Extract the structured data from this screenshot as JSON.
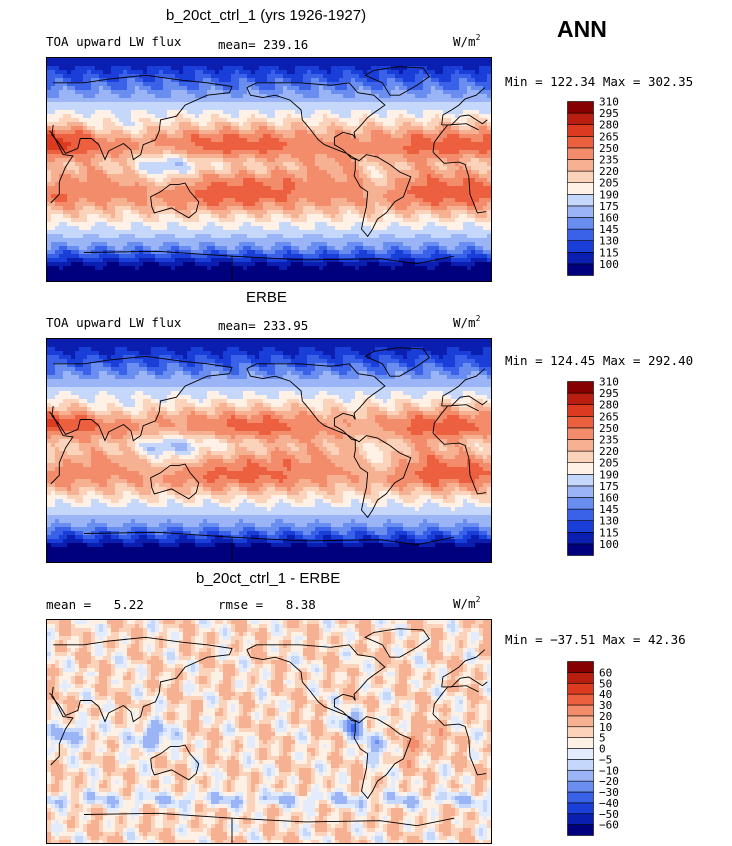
{
  "season": "ANN",
  "colors": {
    "blue_red_15": [
      "#00007f",
      "#0a1fb0",
      "#1a3fd9",
      "#3a62e8",
      "#6a8ef0",
      "#9bb4f5",
      "#c5d7fb",
      "#fff1e6",
      "#fbd2ba",
      "#f6b092",
      "#f38c6b",
      "#ec6040",
      "#dc3b1f",
      "#b81f10",
      "#860000"
    ],
    "diff_16": [
      "#00007f",
      "#0a1fb0",
      "#1a3fd9",
      "#3a62e8",
      "#6a8ef0",
      "#9bb4f5",
      "#c5d7fb",
      "#e3ecfd",
      "#fdf0e4",
      "#fbd2ba",
      "#f6b092",
      "#f38c6b",
      "#ec6040",
      "#dc3b1f",
      "#b81f10",
      "#860000"
    ]
  },
  "panels": [
    {
      "title": "b_20ct_ctrl_1 (yrs 1926-1927)",
      "left_label": "TOA upward LW flux",
      "mean_label": "mean=",
      "mean_value": "239.16",
      "units": "W/m",
      "units_sup": "2",
      "minmax": "Min = 122.34 Max = 302.35"
    },
    {
      "title": "ERBE",
      "left_label": "TOA upward LW flux",
      "mean_label": "mean=",
      "mean_value": "233.95",
      "units": "W/m",
      "units_sup": "2",
      "minmax": "Min = 124.45 Max = 292.40"
    },
    {
      "title": "b_20ct_ctrl_1 - ERBE",
      "left_label": "mean =",
      "left_value": "5.22",
      "rmse_label": "rmse =",
      "rmse_value": "8.38",
      "units": "W/m",
      "units_sup": "2",
      "minmax": "Min = −37.51 Max =  42.36"
    }
  ],
  "chart_data": [
    {
      "type": "heatmap",
      "title": "b_20ct_ctrl_1 (yrs 1926-1927)",
      "variable": "TOA upward LW flux",
      "units": "W/m2",
      "mean": 239.16,
      "min": 122.34,
      "max": 302.35,
      "colorbar_levels": [
        100,
        115,
        130,
        145,
        160,
        175,
        190,
        205,
        220,
        235,
        250,
        265,
        280,
        295,
        310
      ],
      "colorbar_labels": [
        "100",
        "115",
        "130",
        "145",
        "160",
        "175",
        "190",
        "205",
        "220",
        "235",
        "250",
        "265",
        "280",
        "295",
        "310"
      ]
    },
    {
      "type": "heatmap",
      "title": "ERBE",
      "variable": "TOA upward LW flux",
      "units": "W/m2",
      "mean": 233.95,
      "min": 124.45,
      "max": 292.4,
      "colorbar_levels": [
        100,
        115,
        130,
        145,
        160,
        175,
        190,
        205,
        220,
        235,
        250,
        265,
        280,
        295,
        310
      ],
      "colorbar_labels": [
        "100",
        "115",
        "130",
        "145",
        "160",
        "175",
        "190",
        "205",
        "220",
        "235",
        "250",
        "265",
        "280",
        "295",
        "310"
      ]
    },
    {
      "type": "heatmap",
      "title": "b_20ct_ctrl_1 - ERBE",
      "units": "W/m2",
      "mean": 5.22,
      "rmse": 8.38,
      "min": -37.51,
      "max": 42.36,
      "colorbar_levels": [
        -60,
        -50,
        -40,
        -30,
        -20,
        -10,
        -5,
        0,
        5,
        10,
        20,
        30,
        40,
        50,
        60
      ],
      "colorbar_labels": [
        "−60",
        "−50",
        "−40",
        "−30",
        "−20",
        "−10",
        "−5",
        "0",
        "5",
        "10",
        "20",
        "30",
        "40",
        "50",
        "60"
      ]
    }
  ]
}
